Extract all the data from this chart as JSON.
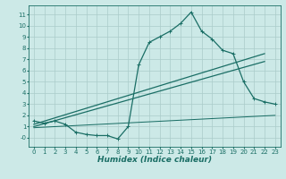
{
  "xlabel": "Humidex (Indice chaleur)",
  "xlim": [
    -0.5,
    23.5
  ],
  "ylim": [
    -0.8,
    11.8
  ],
  "xticks": [
    0,
    1,
    2,
    3,
    4,
    5,
    6,
    7,
    8,
    9,
    10,
    11,
    12,
    13,
    14,
    15,
    16,
    17,
    18,
    19,
    20,
    21,
    22,
    23
  ],
  "yticks": [
    0,
    1,
    2,
    3,
    4,
    5,
    6,
    7,
    8,
    9,
    10,
    11
  ],
  "ytick_labels": [
    "-0",
    "1",
    "2",
    "3",
    "4",
    "5",
    "6",
    "7",
    "8",
    "9",
    "10",
    "11"
  ],
  "bg_color": "#cce9e7",
  "grid_color": "#aaccca",
  "line_color": "#1a6e65",
  "curve_x": [
    0,
    1,
    2,
    3,
    4,
    5,
    6,
    7,
    8,
    9,
    10,
    11,
    12,
    13,
    14,
    15,
    16,
    17,
    18,
    19,
    20,
    21,
    22,
    23
  ],
  "curve_y": [
    1.5,
    1.3,
    1.5,
    1.2,
    0.5,
    0.3,
    0.2,
    0.2,
    -0.1,
    1.0,
    6.5,
    8.5,
    9.0,
    9.5,
    10.2,
    11.2,
    9.5,
    8.8,
    7.8,
    7.5,
    5.0,
    3.5,
    3.2,
    3.0
  ],
  "diag_line1_x": [
    0,
    22
  ],
  "diag_line1_y": [
    1.2,
    7.5
  ],
  "diag_line2_x": [
    0,
    22
  ],
  "diag_line2_y": [
    1.0,
    6.8
  ],
  "flat_line_x": [
    0,
    23
  ],
  "flat_line_y": [
    0.9,
    2.0
  ],
  "marker_size": 2.5,
  "line_width": 0.9,
  "tick_fontsize": 5.0,
  "xlabel_fontsize": 6.5
}
